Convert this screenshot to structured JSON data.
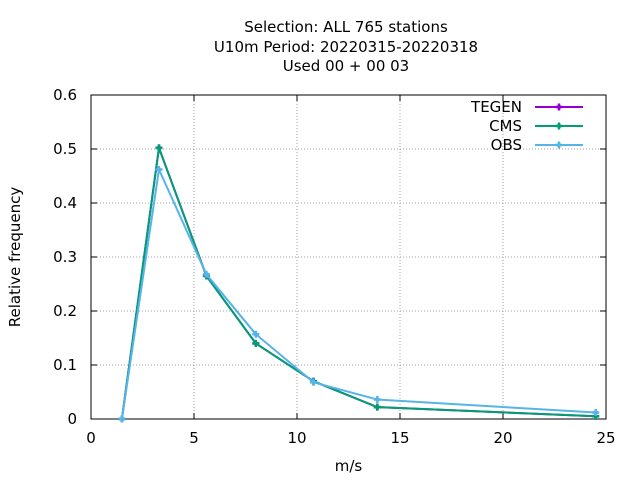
{
  "title_lines": [
    "Selection: ALL     765 stations",
    "U10m  Period: 20220315-20220318",
    "Used  00 + 00 03"
  ],
  "chart_data": {
    "type": "line",
    "xlabel": "m/s",
    "ylabel": "Relative frequency",
    "xlim": [
      0,
      25
    ],
    "ylim": [
      0,
      0.6
    ],
    "xticks": [
      0,
      5,
      10,
      15,
      20,
      25
    ],
    "yticks": [
      0,
      0.1,
      0.2,
      0.3,
      0.4,
      0.5,
      0.6
    ],
    "grid": true,
    "legend_position": "top-right",
    "series": [
      {
        "name": "TEGEN",
        "color": "#9400d3",
        "x": [
          1.5,
          3.3,
          5.6,
          8.0,
          10.8,
          13.9,
          24.5
        ],
        "y": [
          0.0,
          0.502,
          0.265,
          0.14,
          0.07,
          0.022,
          0.005
        ]
      },
      {
        "name": "CMS",
        "color": "#009e73",
        "x": [
          1.5,
          3.3,
          5.6,
          8.0,
          10.8,
          13.9,
          24.5
        ],
        "y": [
          0.0,
          0.502,
          0.265,
          0.14,
          0.07,
          0.022,
          0.005
        ]
      },
      {
        "name": "OBS",
        "color": "#56b4e9",
        "x": [
          1.5,
          3.3,
          5.6,
          8.0,
          10.8,
          13.9,
          24.5
        ],
        "y": [
          0.0,
          0.462,
          0.268,
          0.157,
          0.068,
          0.036,
          0.012
        ]
      }
    ]
  }
}
